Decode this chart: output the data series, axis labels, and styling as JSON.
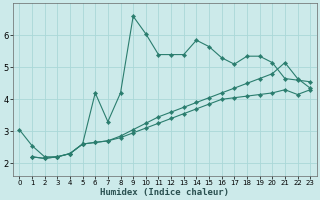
{
  "xlabel": "Humidex (Indice chaleur)",
  "background_color": "#cceaea",
  "grid_color": "#aad8d8",
  "line_color": "#2a7d6e",
  "xlim": [
    -0.5,
    23.5
  ],
  "ylim": [
    1.6,
    7.0
  ],
  "xticks": [
    0,
    1,
    2,
    3,
    4,
    5,
    6,
    7,
    8,
    9,
    10,
    11,
    12,
    13,
    14,
    15,
    16,
    17,
    18,
    19,
    20,
    21,
    22,
    23
  ],
  "yticks": [
    2,
    3,
    4,
    5,
    6
  ],
  "series1_x": [
    0,
    1,
    2,
    3,
    4,
    5,
    6,
    7,
    8,
    9,
    10,
    11,
    12,
    13,
    14,
    15,
    16,
    17,
    18,
    19,
    20,
    21,
    22,
    23
  ],
  "series1_y": [
    3.05,
    2.55,
    2.2,
    2.2,
    2.3,
    2.6,
    4.2,
    3.3,
    4.2,
    6.6,
    6.05,
    5.4,
    5.4,
    5.4,
    5.85,
    5.65,
    5.3,
    5.1,
    5.35,
    5.35,
    5.15,
    4.65,
    4.6,
    4.55
  ],
  "series2_x": [
    1,
    2,
    3,
    4,
    5,
    6,
    7,
    8,
    9,
    10,
    11,
    12,
    13,
    14,
    15,
    16,
    17,
    18,
    19,
    20,
    21,
    22,
    23
  ],
  "series2_y": [
    2.2,
    2.15,
    2.2,
    2.3,
    2.6,
    2.65,
    2.7,
    2.85,
    3.05,
    3.25,
    3.45,
    3.6,
    3.75,
    3.9,
    4.05,
    4.2,
    4.35,
    4.5,
    4.65,
    4.8,
    5.15,
    4.65,
    4.35
  ],
  "series3_x": [
    1,
    2,
    3,
    4,
    5,
    6,
    7,
    8,
    9,
    10,
    11,
    12,
    13,
    14,
    15,
    16,
    17,
    18,
    19,
    20,
    21,
    22,
    23
  ],
  "series3_y": [
    2.2,
    2.15,
    2.2,
    2.3,
    2.6,
    2.65,
    2.7,
    2.8,
    2.95,
    3.1,
    3.25,
    3.4,
    3.55,
    3.7,
    3.85,
    4.0,
    4.05,
    4.1,
    4.15,
    4.2,
    4.3,
    4.15,
    4.3
  ]
}
